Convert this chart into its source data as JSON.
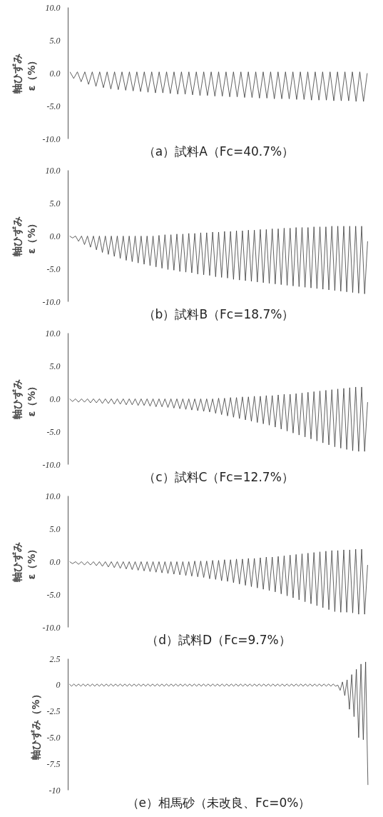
{
  "chart_data": [
    {
      "type": "line",
      "title": "（a）試料A（Fc=40.7%）",
      "ylabel": "軸ひずみ\nε（%）",
      "ylim": [
        -10,
        10
      ],
      "yticks": [
        {
          "value": -10,
          "label": "-10.0"
        },
        {
          "value": -5,
          "label": "-5.0"
        },
        {
          "value": 0,
          "label": "0.0"
        },
        {
          "value": 5,
          "label": "5.0"
        },
        {
          "value": 10,
          "label": "10.0"
        }
      ],
      "tick_labels": "y",
      "grid": false,
      "marker": "none",
      "line_style": "solid",
      "categories": [
        null,
        null,
        null,
        null,
        null,
        null,
        null,
        null,
        null,
        null,
        null,
        null,
        null,
        null,
        null,
        null,
        null,
        null,
        null,
        null,
        null,
        null,
        null,
        null,
        null,
        null,
        null,
        null,
        null,
        null,
        null,
        null,
        null,
        null,
        null,
        null,
        null,
        null,
        null,
        null,
        null,
        null,
        null,
        null,
        null,
        null,
        null,
        null,
        null,
        null,
        null,
        null,
        null,
        null,
        null,
        null,
        null,
        null,
        null,
        null,
        null,
        null,
        null,
        null,
        null,
        null,
        null,
        null,
        null,
        null,
        null,
        null,
        null,
        null,
        null,
        null,
        null,
        null,
        null,
        null,
        null
      ],
      "series": [
        {
          "color": "#3a3a3a",
          "values": [
            0.2,
            -0.8,
            0.2,
            -1.3,
            0.2,
            -1.7,
            0.2,
            -2.0,
            0.2,
            -2.2,
            0.2,
            -2.4,
            0.2,
            -2.5,
            0.2,
            -2.6,
            0.2,
            -2.7,
            0.2,
            -2.8,
            0.2,
            -2.9,
            0.2,
            -3.0,
            0.2,
            -3.0,
            0.2,
            -3.1,
            0.2,
            -3.2,
            0.2,
            -3.2,
            0.2,
            -3.3,
            0.2,
            -3.4,
            0.2,
            -3.4,
            0.2,
            -3.5,
            0.2,
            -3.5,
            0.2,
            -3.6,
            0.2,
            -3.6,
            0.2,
            -3.7,
            0.2,
            -3.7,
            0.2,
            -3.8,
            0.2,
            -3.8,
            0.2,
            -3.9,
            0.2,
            -3.9,
            0.2,
            -3.9,
            0.2,
            -4.0,
            0.2,
            -4.0,
            0.2,
            -4.1,
            0.2,
            -4.1,
            0.2,
            -4.1,
            0.2,
            -4.2,
            0.2,
            -4.2,
            0.2,
            -4.2,
            0.2,
            -4.3,
            0.2,
            -4.3,
            0.0
          ]
        }
      ]
    },
    {
      "type": "line",
      "title": "（b）試料B（Fc=18.7%）",
      "ylabel": "軸ひずみ\nε（%）",
      "ylim": [
        -10,
        10
      ],
      "yticks": [
        {
          "value": -10,
          "label": "-10.0"
        },
        {
          "value": -5,
          "label": "-5.0"
        },
        {
          "value": 0,
          "label": "0.0"
        },
        {
          "value": 5,
          "label": "5.0"
        },
        {
          "value": 10,
          "label": "10.0"
        }
      ],
      "tick_labels": "y",
      "grid": false,
      "marker": "none",
      "line_style": "solid",
      "categories": [
        null,
        null,
        null,
        null,
        null,
        null,
        null,
        null,
        null,
        null,
        null,
        null,
        null,
        null,
        null,
        null,
        null,
        null,
        null,
        null,
        null,
        null,
        null,
        null,
        null,
        null,
        null,
        null,
        null,
        null,
        null,
        null,
        null,
        null,
        null,
        null,
        null,
        null,
        null,
        null,
        null,
        null,
        null,
        null,
        null,
        null,
        null,
        null,
        null,
        null,
        null,
        null,
        null,
        null,
        null,
        null,
        null,
        null,
        null,
        null,
        null,
        null,
        null,
        null,
        null,
        null,
        null,
        null,
        null,
        null,
        null,
        null,
        null,
        null,
        null,
        null,
        null,
        null,
        null,
        null,
        null,
        null,
        null,
        null,
        null,
        null,
        null,
        null,
        null,
        null,
        null,
        null,
        null,
        null,
        null,
        null,
        null,
        null,
        null,
        null,
        null
      ],
      "series": [
        {
          "color": "#3a3a3a",
          "values": [
            0.0,
            -0.3,
            0.0,
            -0.8,
            0.0,
            -1.3,
            0.0,
            -1.7,
            0.0,
            -2.1,
            0.0,
            -2.5,
            0.0,
            -2.8,
            0.0,
            -3.1,
            0.0,
            -3.4,
            0.0,
            -3.7,
            0.0,
            -3.9,
            0.0,
            -4.1,
            0.0,
            -4.3,
            0.0,
            -4.5,
            0.0,
            -4.7,
            0.1,
            -4.9,
            0.2,
            -5.1,
            0.2,
            -5.2,
            0.3,
            -5.4,
            0.3,
            -5.5,
            0.4,
            -5.6,
            0.4,
            -5.8,
            0.5,
            -5.9,
            0.5,
            -6.0,
            0.6,
            -6.2,
            0.6,
            -6.3,
            0.7,
            -6.4,
            0.7,
            -6.6,
            0.8,
            -6.7,
            0.8,
            -6.8,
            0.9,
            -6.9,
            0.9,
            -7.0,
            1.0,
            -7.1,
            1.0,
            -7.2,
            1.1,
            -7.3,
            1.1,
            -7.4,
            1.2,
            -7.5,
            1.2,
            -7.6,
            1.3,
            -7.7,
            1.3,
            -7.8,
            1.3,
            -7.9,
            1.4,
            -8.0,
            1.4,
            -8.1,
            1.4,
            -8.2,
            1.5,
            -8.3,
            1.5,
            -8.4,
            1.5,
            -8.5,
            1.5,
            -8.6,
            1.5,
            -8.7,
            1.5,
            -8.8,
            -0.8
          ]
        }
      ]
    },
    {
      "type": "line",
      "title": "（c）試料C（Fc=12.7%）",
      "ylabel": "軸ひずみ\nε（%）",
      "ylim": [
        -10,
        10
      ],
      "yticks": [
        {
          "value": -10,
          "label": "-10.0"
        },
        {
          "value": -5,
          "label": "-5.0"
        },
        {
          "value": 0,
          "label": "0.0"
        },
        {
          "value": 5,
          "label": "5.0"
        },
        {
          "value": 10,
          "label": "10.0"
        }
      ],
      "tick_labels": "y",
      "grid": false,
      "marker": "none",
      "line_style": "solid",
      "categories": [
        null,
        null,
        null,
        null,
        null,
        null,
        null,
        null,
        null,
        null,
        null,
        null,
        null,
        null,
        null,
        null,
        null,
        null,
        null,
        null,
        null,
        null,
        null,
        null,
        null,
        null,
        null,
        null,
        null,
        null,
        null,
        null,
        null,
        null,
        null,
        null,
        null,
        null,
        null,
        null,
        null,
        null,
        null,
        null,
        null,
        null,
        null,
        null,
        null,
        null,
        null,
        null,
        null,
        null,
        null,
        null,
        null,
        null,
        null,
        null,
        null,
        null,
        null,
        null,
        null,
        null,
        null,
        null,
        null,
        null,
        null,
        null,
        null,
        null,
        null,
        null,
        null,
        null,
        null,
        null,
        null,
        null,
        null,
        null,
        null,
        null,
        null,
        null,
        null,
        null,
        null,
        null,
        null,
        null,
        null,
        null,
        null,
        null,
        null,
        null,
        null
      ],
      "series": [
        {
          "color": "#3a3a3a",
          "values": [
            0.0,
            -0.4,
            0.0,
            -0.5,
            0.0,
            -0.5,
            0.0,
            -0.6,
            0.0,
            -0.6,
            0.0,
            -0.7,
            0.0,
            -0.7,
            0.0,
            -0.8,
            0.0,
            -0.8,
            0.0,
            -0.9,
            0.0,
            -0.9,
            0.0,
            -1.0,
            0.0,
            -1.0,
            0.0,
            -1.1,
            0.0,
            -1.2,
            0.0,
            -1.2,
            0.0,
            -1.3,
            0.0,
            -1.4,
            0.0,
            -1.5,
            0.0,
            -1.6,
            0.0,
            -1.7,
            0.0,
            -1.8,
            0.0,
            -1.9,
            0.0,
            -2.0,
            0.0,
            -2.2,
            0.1,
            -2.4,
            0.1,
            -2.6,
            0.2,
            -2.8,
            0.2,
            -3.0,
            0.3,
            -3.2,
            0.3,
            -3.4,
            0.4,
            -3.6,
            0.4,
            -3.8,
            0.5,
            -4.0,
            0.5,
            -4.3,
            0.6,
            -4.6,
            0.7,
            -4.9,
            0.7,
            -5.2,
            0.8,
            -5.5,
            0.9,
            -5.8,
            1.0,
            -6.1,
            1.1,
            -6.4,
            1.2,
            -6.7,
            1.3,
            -7.0,
            1.4,
            -7.3,
            1.5,
            -7.5,
            1.6,
            -7.7,
            1.7,
            -7.9,
            1.8,
            -8.0,
            1.8,
            -8.0,
            -0.5
          ]
        }
      ]
    },
    {
      "type": "line",
      "title": "（d）試料D（Fc=9.7%）",
      "ylabel": "軸ひずみ\nε（%）",
      "ylim": [
        -10,
        10
      ],
      "yticks": [
        {
          "value": -10,
          "label": "-10.0"
        },
        {
          "value": -5,
          "label": "-5.0"
        },
        {
          "value": 0,
          "label": "0.0"
        },
        {
          "value": 5,
          "label": "5.0"
        },
        {
          "value": 10,
          "label": "10.0"
        }
      ],
      "tick_labels": "y",
      "grid": false,
      "marker": "none",
      "line_style": "solid",
      "categories": [
        null,
        null,
        null,
        null,
        null,
        null,
        null,
        null,
        null,
        null,
        null,
        null,
        null,
        null,
        null,
        null,
        null,
        null,
        null,
        null,
        null,
        null,
        null,
        null,
        null,
        null,
        null,
        null,
        null,
        null,
        null,
        null,
        null,
        null,
        null,
        null,
        null,
        null,
        null,
        null,
        null,
        null,
        null,
        null,
        null,
        null,
        null,
        null,
        null,
        null,
        null,
        null,
        null,
        null,
        null,
        null,
        null,
        null,
        null,
        null,
        null,
        null,
        null,
        null,
        null,
        null,
        null,
        null,
        null,
        null,
        null,
        null,
        null,
        null,
        null,
        null,
        null,
        null,
        null,
        null,
        null,
        null,
        null,
        null,
        null,
        null,
        null,
        null,
        null,
        null,
        null,
        null,
        null,
        null,
        null,
        null,
        null,
        null,
        null,
        null,
        null
      ],
      "series": [
        {
          "color": "#3a3a3a",
          "values": [
            0.0,
            -0.3,
            0.0,
            -0.4,
            0.0,
            -0.5,
            0.0,
            -0.5,
            0.0,
            -0.6,
            0.0,
            -0.7,
            0.0,
            -0.8,
            0.0,
            -0.9,
            0.0,
            -1.0,
            0.0,
            -1.1,
            0.0,
            -1.2,
            0.0,
            -1.3,
            0.0,
            -1.4,
            0.0,
            -1.5,
            0.0,
            -1.6,
            0.0,
            -1.7,
            0.0,
            -1.8,
            0.0,
            -1.9,
            0.0,
            -2.0,
            0.0,
            -2.1,
            0.0,
            -2.2,
            0.1,
            -2.3,
            0.1,
            -2.4,
            0.1,
            -2.6,
            0.2,
            -2.7,
            0.2,
            -2.9,
            0.3,
            -3.0,
            0.3,
            -3.2,
            0.4,
            -3.4,
            0.4,
            -3.6,
            0.5,
            -3.8,
            0.5,
            -4.0,
            0.6,
            -4.2,
            0.7,
            -4.4,
            0.7,
            -4.6,
            0.8,
            -4.9,
            0.9,
            -5.2,
            1.0,
            -5.5,
            1.1,
            -5.8,
            1.2,
            -6.1,
            1.3,
            -6.4,
            1.4,
            -6.7,
            1.5,
            -7.0,
            1.6,
            -7.3,
            1.7,
            -7.6,
            1.7,
            -7.7,
            1.8,
            -7.7,
            1.8,
            -7.8,
            1.9,
            -8.0,
            1.9,
            -8.0,
            -0.5
          ]
        }
      ]
    },
    {
      "type": "line",
      "title": "（e）相馬砂（未改良、Fc=0%）",
      "ylabel": "軸ひずみ（%）",
      "ylim": [
        -10,
        2.5
      ],
      "yticks": [
        {
          "value": -10,
          "label": "-10"
        },
        {
          "value": -7.5,
          "label": "-7.5"
        },
        {
          "value": -5,
          "label": "-5.0"
        },
        {
          "value": -2.5,
          "label": "-2.5"
        },
        {
          "value": 0,
          "label": "0"
        },
        {
          "value": 2.5,
          "label": "2.5"
        }
      ],
      "tick_labels": "y",
      "grid": false,
      "marker": "none",
      "line_style": "solid",
      "categories": [
        null,
        null,
        null,
        null,
        null,
        null,
        null,
        null,
        null,
        null,
        null,
        null,
        null,
        null,
        null,
        null,
        null,
        null,
        null,
        null,
        null,
        null,
        null,
        null,
        null,
        null,
        null,
        null,
        null,
        null,
        null,
        null,
        null,
        null,
        null,
        null,
        null,
        null,
        null,
        null,
        null,
        null,
        null,
        null,
        null,
        null,
        null,
        null,
        null,
        null,
        null,
        null,
        null,
        null,
        null,
        null,
        null,
        null,
        null,
        null,
        null,
        null,
        null,
        null,
        null,
        null,
        null,
        null,
        null,
        null,
        null,
        null,
        null,
        null,
        null,
        null,
        null,
        null,
        null,
        null,
        null,
        null,
        null,
        null,
        null,
        null,
        null,
        null,
        null,
        null,
        null,
        null,
        null,
        null,
        null,
        null,
        null,
        null,
        null,
        null,
        null,
        null,
        null,
        null,
        null,
        null,
        null,
        null,
        null,
        null,
        null,
        null,
        null,
        null,
        null,
        null,
        null,
        null,
        null,
        null,
        null,
        null,
        null,
        null,
        null,
        null,
        null,
        null,
        null,
        null
      ],
      "series": [
        {
          "color": "#3a3a3a",
          "values": [
            0.1,
            -0.1,
            0.1,
            -0.1,
            0.1,
            -0.1,
            0.1,
            -0.1,
            0.1,
            -0.1,
            0.1,
            -0.1,
            0.1,
            -0.1,
            0.1,
            -0.1,
            0.1,
            -0.1,
            0.1,
            -0.1,
            0.1,
            -0.1,
            0.1,
            -0.1,
            0.1,
            -0.1,
            0.1,
            -0.1,
            0.1,
            -0.1,
            0.1,
            -0.1,
            0.1,
            -0.1,
            0.1,
            -0.1,
            0.1,
            -0.1,
            0.1,
            -0.1,
            0.1,
            -0.1,
            0.1,
            -0.1,
            0.1,
            -0.1,
            0.1,
            -0.1,
            0.1,
            -0.1,
            0.1,
            -0.1,
            0.1,
            -0.1,
            0.1,
            -0.1,
            0.1,
            -0.1,
            0.1,
            -0.1,
            0.1,
            -0.1,
            0.1,
            -0.1,
            0.1,
            -0.1,
            0.1,
            -0.1,
            0.1,
            -0.1,
            0.1,
            -0.1,
            0.1,
            -0.1,
            0.1,
            -0.1,
            0.1,
            -0.1,
            0.1,
            -0.1,
            0.1,
            -0.1,
            0.1,
            -0.1,
            0.1,
            -0.1,
            0.1,
            -0.1,
            0.1,
            -0.1,
            0.1,
            -0.1,
            0.1,
            -0.1,
            0.1,
            -0.1,
            0.1,
            -0.1,
            0.1,
            -0.1,
            0.1,
            -0.1,
            0.1,
            -0.1,
            0.1,
            -0.1,
            0.1,
            -0.1,
            0.1,
            -0.1,
            0.1,
            -0.1,
            0.1,
            -0.1,
            0.1,
            -0.1,
            0.0,
            -0.5,
            0.3,
            -1.0,
            0.5,
            -2.3,
            1.0,
            -3.0,
            1.5,
            -5.0,
            2.0,
            -5.2,
            2.2,
            -9.5
          ]
        }
      ]
    }
  ]
}
